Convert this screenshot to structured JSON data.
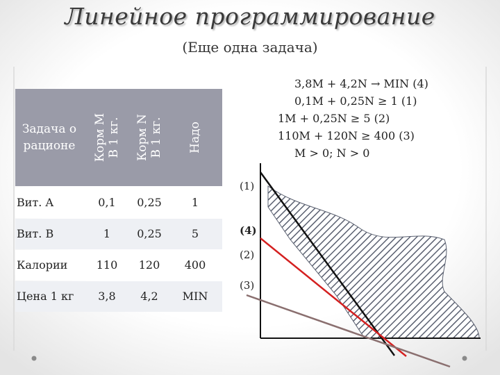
{
  "slide": {
    "title": "Линейное программирование",
    "subtitle": "(Еще одна задача)"
  },
  "table": {
    "corner": "Задача о рационе",
    "columns": [
      {
        "line1": "Корм M",
        "line2": "В 1 кг."
      },
      {
        "line1": "Корм N",
        "line2": "В 1 кг."
      },
      {
        "line1": "Надо",
        "line2": ""
      }
    ],
    "rows": [
      {
        "label": "Вит. A",
        "values": [
          "0,1",
          "0,25",
          "1"
        ]
      },
      {
        "label": "Вит. B",
        "values": [
          "1",
          "0,25",
          "5"
        ]
      },
      {
        "label": "Калории",
        "values": [
          "110",
          "120",
          "400"
        ]
      },
      {
        "label": "Цена 1 кг",
        "values": [
          "3,8",
          "4,2",
          "MIN"
        ]
      }
    ]
  },
  "formulas": [
    "3,8M + 4,2N → MIN  (4)",
    "0,1M + 0,25N ≥ 1  (1)",
    "1M + 0,25N ≥ 5    (2)",
    "110M + 120N ≥ 400  (3)",
    "M > 0;   N > 0"
  ],
  "graph": {
    "line_labels": [
      "(1)",
      "(4)",
      "(2)",
      "(3)"
    ],
    "colors": {
      "hatch": "#5a6070",
      "line1": "#111111",
      "line4": "#d42020",
      "line3": "#8a6f6f",
      "header": "#9a9ba8"
    }
  }
}
